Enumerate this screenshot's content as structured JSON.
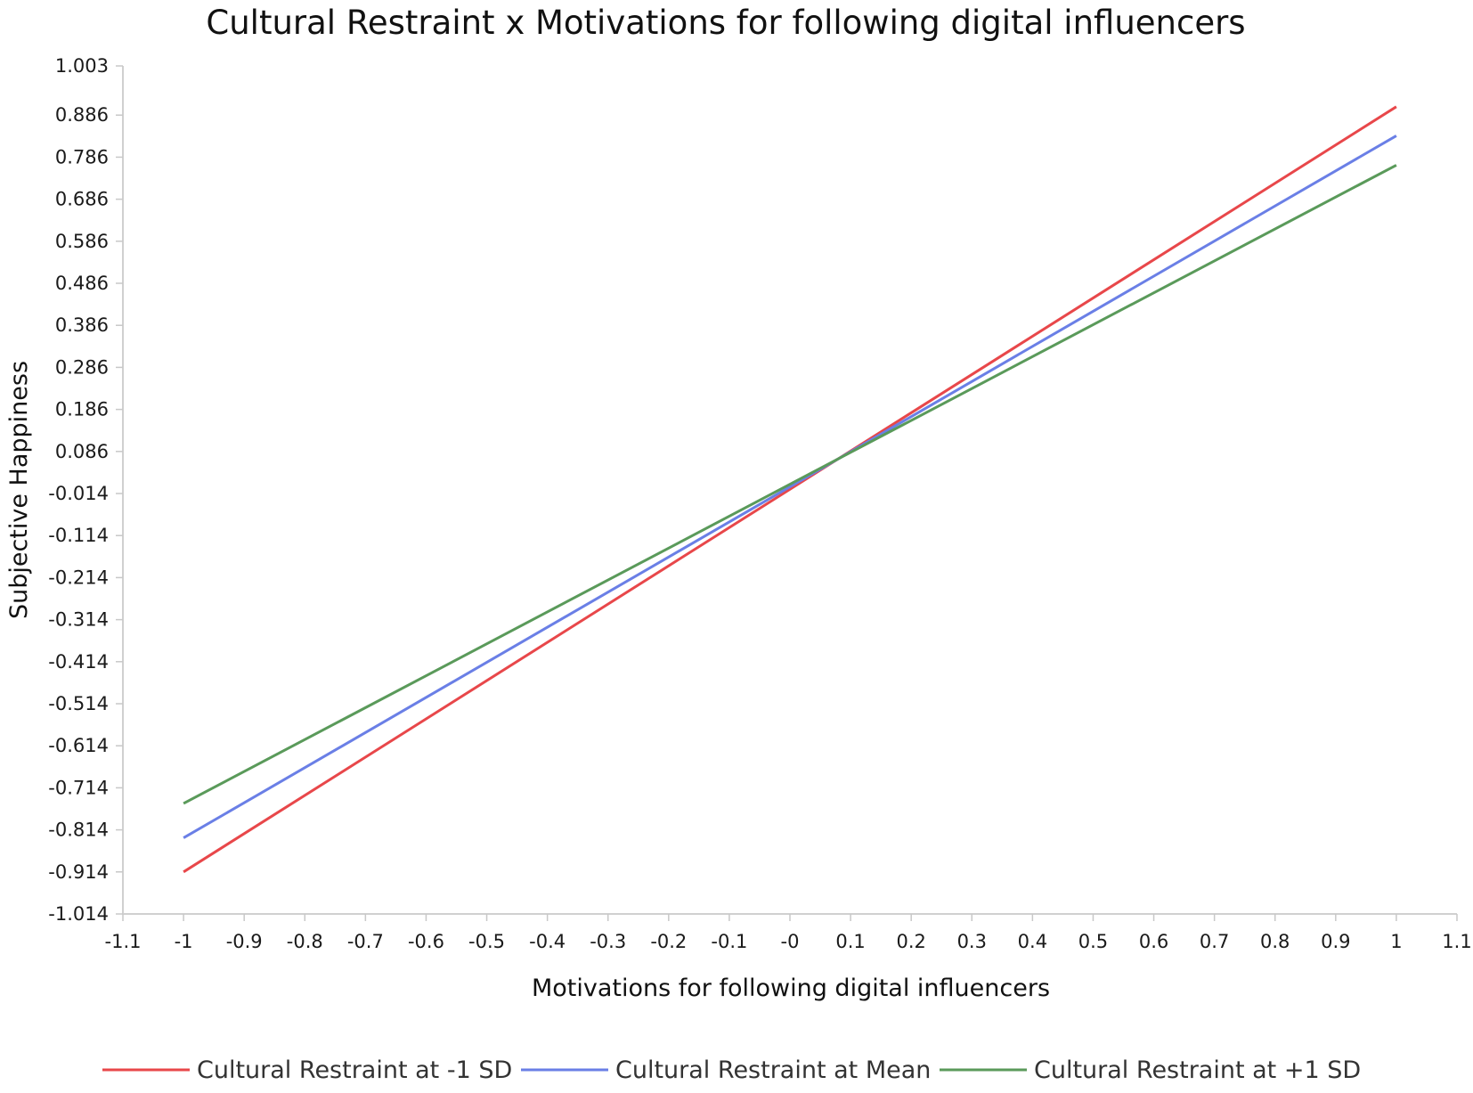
{
  "chart_data": {
    "type": "line",
    "title": "Cultural Restraint x Motivations for following digital influencers",
    "xlabel": "Motivations for following digital influencers",
    "ylabel": "Subjective Happiness",
    "xlim": [
      -1.1,
      1.1
    ],
    "ylim": [
      -1.014,
      1.003
    ],
    "x_ticks": [
      "-1.1",
      "-1",
      "-0.9",
      "-0.8",
      "-0.7",
      "-0.6",
      "-0.5",
      "-0.4",
      "-0.3",
      "-0.2",
      "-0.1",
      "-0",
      "0.1",
      "0.2",
      "0.3",
      "0.4",
      "0.5",
      "0.6",
      "0.7",
      "0.8",
      "0.9",
      "1",
      "1.1"
    ],
    "y_ticks": [
      "1.003",
      "0.886",
      "0.786",
      "0.686",
      "0.586",
      "0.486",
      "0.386",
      "0.286",
      "0.186",
      "0.086",
      "-0.014",
      "-0.114",
      "-0.214",
      "-0.314",
      "-0.414",
      "-0.514",
      "-0.614",
      "-0.714",
      "-0.814",
      "-0.914",
      "-1.014"
    ],
    "grid": false,
    "legend_position": "bottom",
    "series": [
      {
        "name": "Cultural Restraint at -1 SD",
        "color": "#e8474a",
        "x": [
          -1,
          1
        ],
        "y": [
          -0.914,
          0.906
        ]
      },
      {
        "name": "Cultural Restraint at Mean",
        "color": "#6a7fe6",
        "x": [
          -1,
          1
        ],
        "y": [
          -0.833,
          0.837
        ]
      },
      {
        "name": "Cultural Restraint at +1 SD",
        "color": "#5a9a5a",
        "x": [
          -1,
          1
        ],
        "y": [
          -0.751,
          0.767
        ]
      }
    ]
  }
}
